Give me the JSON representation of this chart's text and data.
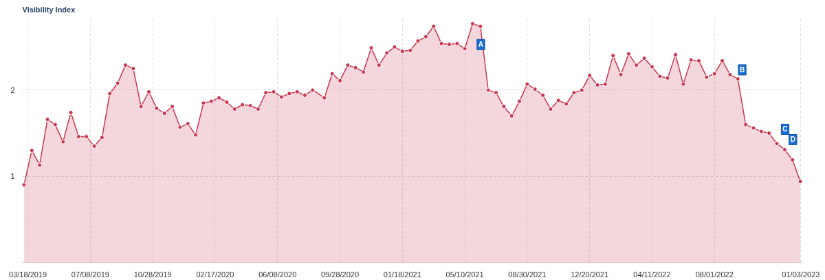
{
  "chart_data": {
    "type": "area",
    "title": "Visibility Index",
    "x": [
      "2019-03-11",
      "2019-03-25",
      "2019-04-08",
      "2019-04-22",
      "2019-05-06",
      "2019-05-20",
      "2019-06-03",
      "2019-06-17",
      "2019-07-01",
      "2019-07-15",
      "2019-07-29",
      "2019-08-12",
      "2019-08-26",
      "2019-09-09",
      "2019-09-23",
      "2019-10-07",
      "2019-10-21",
      "2019-11-04",
      "2019-11-18",
      "2019-12-02",
      "2019-12-16",
      "2019-12-30",
      "2020-01-13",
      "2020-01-27",
      "2020-02-10",
      "2020-02-24",
      "2020-03-09",
      "2020-03-23",
      "2020-04-06",
      "2020-04-20",
      "2020-05-04",
      "2020-05-18",
      "2020-06-01",
      "2020-06-15",
      "2020-06-29",
      "2020-07-13",
      "2020-07-27",
      "2020-08-10",
      "2020-08-31",
      "2020-09-14",
      "2020-09-28",
      "2020-10-12",
      "2020-10-26",
      "2020-11-09",
      "2020-11-23",
      "2020-12-07",
      "2020-12-21",
      "2021-01-04",
      "2021-01-18",
      "2021-02-01",
      "2021-02-15",
      "2021-03-01",
      "2021-03-15",
      "2021-03-29",
      "2021-04-12",
      "2021-04-26",
      "2021-05-10",
      "2021-05-24",
      "2021-06-07",
      "2021-06-21",
      "2021-07-05",
      "2021-07-19",
      "2021-08-02",
      "2021-08-16",
      "2021-08-30",
      "2021-09-13",
      "2021-09-27",
      "2021-10-11",
      "2021-10-25",
      "2021-11-08",
      "2021-11-22",
      "2021-12-06",
      "2021-12-20",
      "2022-01-03",
      "2022-01-17",
      "2022-01-31",
      "2022-02-14",
      "2022-02-28",
      "2022-03-14",
      "2022-03-28",
      "2022-04-11",
      "2022-04-25",
      "2022-05-09",
      "2022-05-23",
      "2022-06-06",
      "2022-06-20",
      "2022-07-04",
      "2022-07-18",
      "2022-08-01",
      "2022-08-15",
      "2022-08-29",
      "2022-09-12",
      "2022-09-26",
      "2022-10-10",
      "2022-10-24",
      "2022-11-07",
      "2022-11-21",
      "2022-12-05",
      "2022-12-19",
      "2023-01-02"
    ],
    "series": [
      {
        "color": "#c8374f",
        "values": [
          0.9,
          1.3,
          1.13,
          1.66,
          1.6,
          1.4,
          1.74,
          1.46,
          1.46,
          1.35,
          1.45,
          1.96,
          2.08,
          2.29,
          2.25,
          1.81,
          1.98,
          1.79,
          1.73,
          1.81,
          1.57,
          1.61,
          1.48,
          1.85,
          1.87,
          1.91,
          1.86,
          1.78,
          1.83,
          1.82,
          1.78,
          1.97,
          1.98,
          1.92,
          1.96,
          1.98,
          1.94,
          2.0,
          1.91,
          2.19,
          2.11,
          2.29,
          2.26,
          2.21,
          2.49,
          2.29,
          2.43,
          2.5,
          2.45,
          2.46,
          2.57,
          2.62,
          2.74,
          2.54,
          2.53,
          2.54,
          2.48,
          2.77,
          2.74,
          2.0,
          1.97,
          1.81,
          1.7,
          1.87,
          2.07,
          2.01,
          1.94,
          1.78,
          1.88,
          1.84,
          1.97,
          2.0,
          2.17,
          2.06,
          2.07,
          2.4,
          2.18,
          2.42,
          2.29,
          2.37,
          2.27,
          2.16,
          2.14,
          2.41,
          2.07,
          2.35,
          2.34,
          2.15,
          2.19,
          2.34,
          2.18,
          2.13,
          1.6,
          1.56,
          1.52,
          1.5,
          1.38,
          1.31,
          1.19,
          0.94
        ]
      }
    ],
    "xlim": [
      "2019-03-08",
      "2023-01-05"
    ],
    "xticks": [
      {
        "value": "2019-03-18",
        "label": "03/18/2019"
      },
      {
        "value": "2019-07-08",
        "label": "07/08/2019"
      },
      {
        "value": "2019-10-28",
        "label": "10/28/2019"
      },
      {
        "value": "2020-02-17",
        "label": "02/17/2020"
      },
      {
        "value": "2020-06-08",
        "label": "06/08/2020"
      },
      {
        "value": "2020-09-28",
        "label": "09/28/2020"
      },
      {
        "value": "2021-01-18",
        "label": "01/18/2021"
      },
      {
        "value": "2021-05-10",
        "label": "05/10/2021"
      },
      {
        "value": "2021-08-30",
        "label": "08/30/2021"
      },
      {
        "value": "2021-12-20",
        "label": "12/20/2021"
      },
      {
        "value": "2022-04-11",
        "label": "04/11/2022"
      },
      {
        "value": "2022-08-01",
        "label": "08/01/2022"
      },
      {
        "value": "2023-01-03",
        "label": "01/03/2023"
      }
    ],
    "ylim": [
      0,
      2.85
    ],
    "yticks": [
      {
        "value": 0,
        "label": null
      },
      1,
      2
    ],
    "grid": true,
    "marker": "circle",
    "annotations": [
      {
        "text": "A",
        "x": "2021-06-07",
        "y": 2.74
      },
      {
        "text": "B",
        "x": "2022-09-19",
        "y": 2.0
      },
      {
        "text": "C",
        "x": "2022-12-05",
        "y": 1.31
      },
      {
        "text": "D",
        "x": "2022-12-19",
        "y": 1.19
      }
    ]
  }
}
